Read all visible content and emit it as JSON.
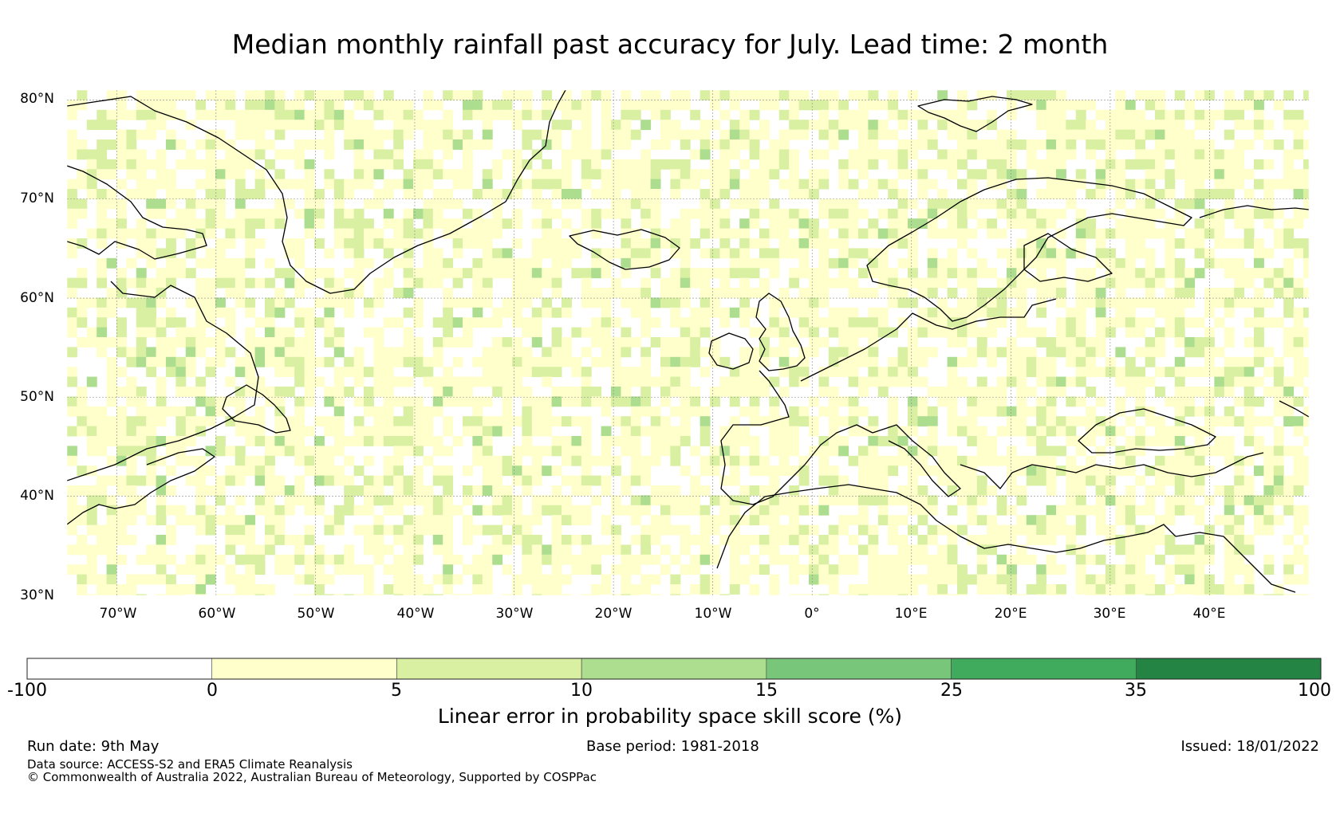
{
  "title": "Median monthly rainfall past accuracy for July. Lead time: 2 month",
  "latitude_labels": [
    "80°N",
    "70°N",
    "60°N",
    "50°N",
    "40°N",
    "30°N"
  ],
  "longitude_labels": [
    "70°W",
    "60°W",
    "50°W",
    "40°W",
    "30°W",
    "20°W",
    "10°W",
    "0°",
    "10°E",
    "20°E",
    "30°E",
    "40°E"
  ],
  "map": {
    "extent": {
      "lon_min": -75,
      "lon_max": 50,
      "lat_min": 30,
      "lat_max": 81
    },
    "grid": "on",
    "coastline_color": "#000000"
  },
  "colorbar": {
    "boundaries": [
      "-100",
      "0",
      "5",
      "10",
      "15",
      "25",
      "35",
      "100"
    ],
    "colors": [
      "#ffffff",
      "#ffffcc",
      "#d9f0a3",
      "#addd8e",
      "#78c679",
      "#41ab5d",
      "#238443"
    ],
    "label": "Linear error in probability space skill score (%)"
  },
  "footer": {
    "run_date": "Run date: 9th May",
    "base_period": "Base period: 1981-2018",
    "issued": "Issued: 18/01/2022",
    "data_source": "Data source: ACCESS-S2 and ERA5 Climate Reanalysis",
    "copyright": "© Commonwealth of Australia 2022, Australian Bureau of Meteorology, Supported by COSPPac"
  }
}
